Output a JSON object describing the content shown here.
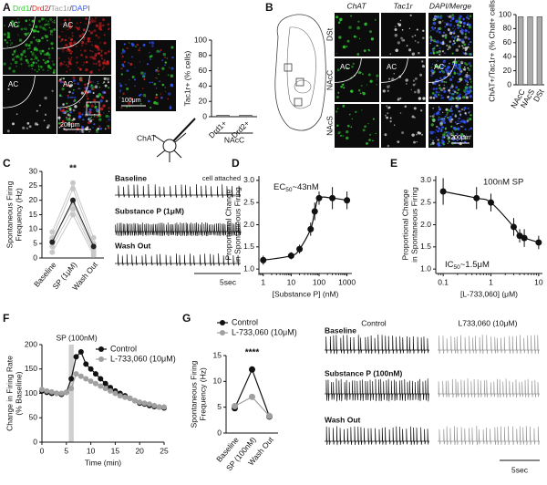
{
  "panel_labels": {
    "a": "A",
    "b": "B",
    "c": "C",
    "d": "D",
    "e": "E",
    "f": "F",
    "g": "G"
  },
  "panel_a": {
    "stain": [
      {
        "text": "Drd1",
        "color": "#33cc33"
      },
      {
        "text": "/",
        "color": "#222222"
      },
      {
        "text": "Drd2",
        "color": "#e02020"
      },
      {
        "text": "/",
        "color": "#222222"
      },
      {
        "text": "Tac1r",
        "color": "#999999"
      },
      {
        "text": "/",
        "color": "#222222"
      },
      {
        "text": "DAPI",
        "color": "#3355ff"
      }
    ],
    "region": "AC",
    "scale_zoom": "100μm",
    "scale_main": "200μm"
  },
  "panel_b": {
    "channels": [
      {
        "text": "ChAT",
        "color": "#33cc33"
      },
      {
        "text": "Tac1r",
        "color": "#999999"
      },
      {
        "text": "DAPI/Merge",
        "color": "#3355ff"
      }
    ],
    "rows": [
      "DSt",
      "NAcC",
      "NAcS"
    ],
    "region": "AC",
    "scale": "200μm"
  },
  "panel_c": {
    "cell": "ChAT",
    "mode": "cell attached",
    "traces": [
      "Baseline",
      "Substance P (1μM)",
      "Wash Out"
    ],
    "scale": "5sec"
  },
  "panel_g": {
    "columns": [
      "Control",
      "L733,060 (10μM)"
    ],
    "traces": [
      "Baseline",
      "Substance P (100nM)",
      "Wash Out"
    ],
    "scale": "5sec"
  },
  "chart_data": [
    {
      "type": "bar",
      "ylabel": "Tac1r+ (% cells)",
      "categories": [
        "Drd1+",
        "Drd2+"
      ],
      "group_label": "NAcC",
      "values": [
        2,
        2
      ],
      "color": "#999999",
      "ylim": [
        0,
        100
      ],
      "yticks": [
        0,
        20,
        40,
        60,
        80,
        100
      ]
    },
    {
      "type": "bar",
      "ylabel": "ChAT+/Tac1r+ (% Chat+ cells)",
      "categories": [
        "NAcC",
        "NAcS",
        "DSt"
      ],
      "values": [
        97,
        97,
        97
      ],
      "color": "#aaaaaa",
      "ylim": [
        0,
        100
      ],
      "yticks": [
        0,
        20,
        40,
        60,
        80,
        100
      ]
    },
    {
      "type": "line",
      "ylabel": [
        "Spontaneous Firing",
        "Frequency (Hz)"
      ],
      "categories": [
        "Baseline",
        "SP (1μM)",
        "Wash Out"
      ],
      "significance": "**",
      "series": [
        {
          "color": "#c8c8c8",
          "values": [
            2,
            15,
            1
          ]
        },
        {
          "color": "#c8c8c8",
          "values": [
            4,
            17,
            2
          ]
        },
        {
          "color": "#c8c8c8",
          "values": [
            6,
            19,
            3
          ]
        },
        {
          "color": "#c8c8c8",
          "values": [
            7,
            24,
            5
          ]
        },
        {
          "color": "#c8c8c8",
          "values": [
            9,
            26,
            7
          ]
        },
        {
          "color": "#222222",
          "values": [
            5.5,
            20,
            4
          ]
        }
      ],
      "ylim": [
        0,
        30
      ],
      "yticks": [
        0,
        5,
        10,
        15,
        20,
        25,
        30
      ]
    },
    {
      "type": "scatter",
      "ylabel": [
        "Proportional Change",
        "in Spontaneous Firing"
      ],
      "xlabel": "[Substance P] (nM)",
      "annotation": {
        "main": "EC",
        "sub": "50",
        "rest": "~43nM"
      },
      "x": [
        1,
        10,
        20,
        50,
        70,
        100,
        300,
        1000
      ],
      "values": [
        1.2,
        1.3,
        1.45,
        1.9,
        2.3,
        2.6,
        2.6,
        2.55
      ],
      "errors": [
        0.1,
        0.08,
        0.1,
        0.15,
        0.2,
        0.15,
        0.25,
        0.2
      ],
      "color": "#111111",
      "xscale": "log",
      "xlim": [
        0.7,
        1500
      ],
      "xticks": [
        1,
        10,
        100,
        1000
      ],
      "ylim": [
        0.9,
        3.1
      ],
      "yticks": [
        {
          "value": 1,
          "label": "1.0"
        },
        {
          "value": 1.5,
          "label": "1.5"
        },
        {
          "value": 2,
          "label": "2.0"
        },
        {
          "value": 2.5,
          "label": "2.5"
        },
        {
          "value": 3,
          "label": "3.0"
        }
      ]
    },
    {
      "type": "scatter",
      "ylabel": [
        "Proportional Change",
        "in Spontaneous Firing"
      ],
      "xlabel": "[L-733,060] (μM)",
      "condition": "100nM SP",
      "annotation": {
        "main": "IC",
        "sub": "50",
        "rest": "~1.5μM"
      },
      "x": [
        0.1,
        0.5,
        1,
        3,
        4,
        5,
        10
      ],
      "values": [
        2.75,
        2.6,
        2.5,
        1.95,
        1.75,
        1.7,
        1.6
      ],
      "errors": [
        0.3,
        0.25,
        0.2,
        0.2,
        0.15,
        0.2,
        0.15
      ],
      "color": "#111111",
      "xscale": "log",
      "xlim": [
        0.07,
        12
      ],
      "xticks": [
        0.1,
        1,
        10
      ],
      "ylim": [
        0.9,
        3.1
      ],
      "yticks": [
        {
          "value": 1,
          "label": "1.0"
        },
        {
          "value": 1.5,
          "label": "1.5"
        },
        {
          "value": 2,
          "label": "2.0"
        },
        {
          "value": 2.5,
          "label": "2.5"
        },
        {
          "value": 3,
          "label": "3.0"
        }
      ]
    },
    {
      "type": "line",
      "ylabel": [
        "Change in Firing Rate",
        "(% Baseline)"
      ],
      "xlabel": "Time (min)",
      "annotation": "SP (100nM)",
      "sp_window": [
        5.5,
        6.5
      ],
      "legend": "upper right",
      "x": [
        0,
        1,
        2,
        3,
        4,
        5,
        6,
        7,
        8,
        9,
        10,
        11,
        12,
        13,
        14,
        15,
        16,
        17,
        18,
        19,
        20,
        21,
        22,
        23,
        24,
        25
      ],
      "series": [
        {
          "name": "Control",
          "color": "#111111",
          "values": [
            105,
            102,
            100,
            100,
            98,
            102,
            130,
            175,
            185,
            160,
            150,
            140,
            130,
            120,
            112,
            105,
            100,
            95,
            90,
            85,
            80,
            78,
            75,
            73,
            72,
            70
          ]
        },
        {
          "name": "L-733,060 (10μM)",
          "color": "#a0a0a0",
          "values": [
            108,
            105,
            103,
            100,
            100,
            102,
            110,
            140,
            135,
            130,
            125,
            120,
            115,
            110,
            105,
            100,
            95,
            92,
            90,
            85,
            82,
            80,
            78,
            75,
            72,
            72
          ]
        }
      ],
      "xlim": [
        0,
        25
      ],
      "xticks": [
        0,
        5,
        10,
        15,
        20,
        25
      ],
      "ylim": [
        0,
        200
      ],
      "yticks": [
        0,
        50,
        100,
        150,
        200
      ]
    },
    {
      "type": "line",
      "ylabel": [
        "Spontaneous Firing",
        "Frequency (Hz)"
      ],
      "categories": [
        "Baseline",
        "SP (100nM)",
        "Wash Out"
      ],
      "significance": "****",
      "legend": "upper left",
      "series": [
        {
          "name": "Control",
          "color": "#111111",
          "values": [
            4.8,
            12.3,
            3.2
          ]
        },
        {
          "name": "L-733,060 (10μM)",
          "color": "#a0a0a0",
          "values": [
            5.2,
            7,
            3.3
          ]
        }
      ],
      "ylim": [
        0,
        15
      ],
      "yticks": [
        0,
        5,
        10,
        15
      ]
    }
  ]
}
